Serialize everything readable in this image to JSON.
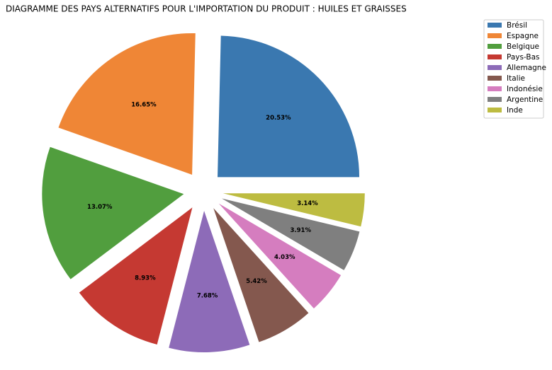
{
  "chart_data": {
    "type": "pie",
    "title": "DIAGRAMME DES PAYS ALTERNATIFS POUR L'IMPORTATION DU PRODUIT : HUILES ET GRAISSES",
    "categories": [
      "Brésil",
      "Espagne",
      "Belgique",
      "Pays-Bas",
      "Allemagne",
      "Italie",
      "Indonésie",
      "Argentine",
      "Inde"
    ],
    "values": [
      20.53,
      16.65,
      13.07,
      8.93,
      7.68,
      5.42,
      4.03,
      3.91,
      3.14
    ],
    "value_labels": [
      "20.53%",
      "16.65%",
      "13.07%",
      "8.93%",
      "7.68%",
      "5.42%",
      "4.03%",
      "3.91%",
      "3.14%"
    ],
    "colors": [
      "#3a78b0",
      "#ef8636",
      "#519e3e",
      "#c53932",
      "#8d6bb8",
      "#84584e",
      "#d57dbf",
      "#7f7f7f",
      "#bdbc41"
    ],
    "legend": "upper right"
  }
}
